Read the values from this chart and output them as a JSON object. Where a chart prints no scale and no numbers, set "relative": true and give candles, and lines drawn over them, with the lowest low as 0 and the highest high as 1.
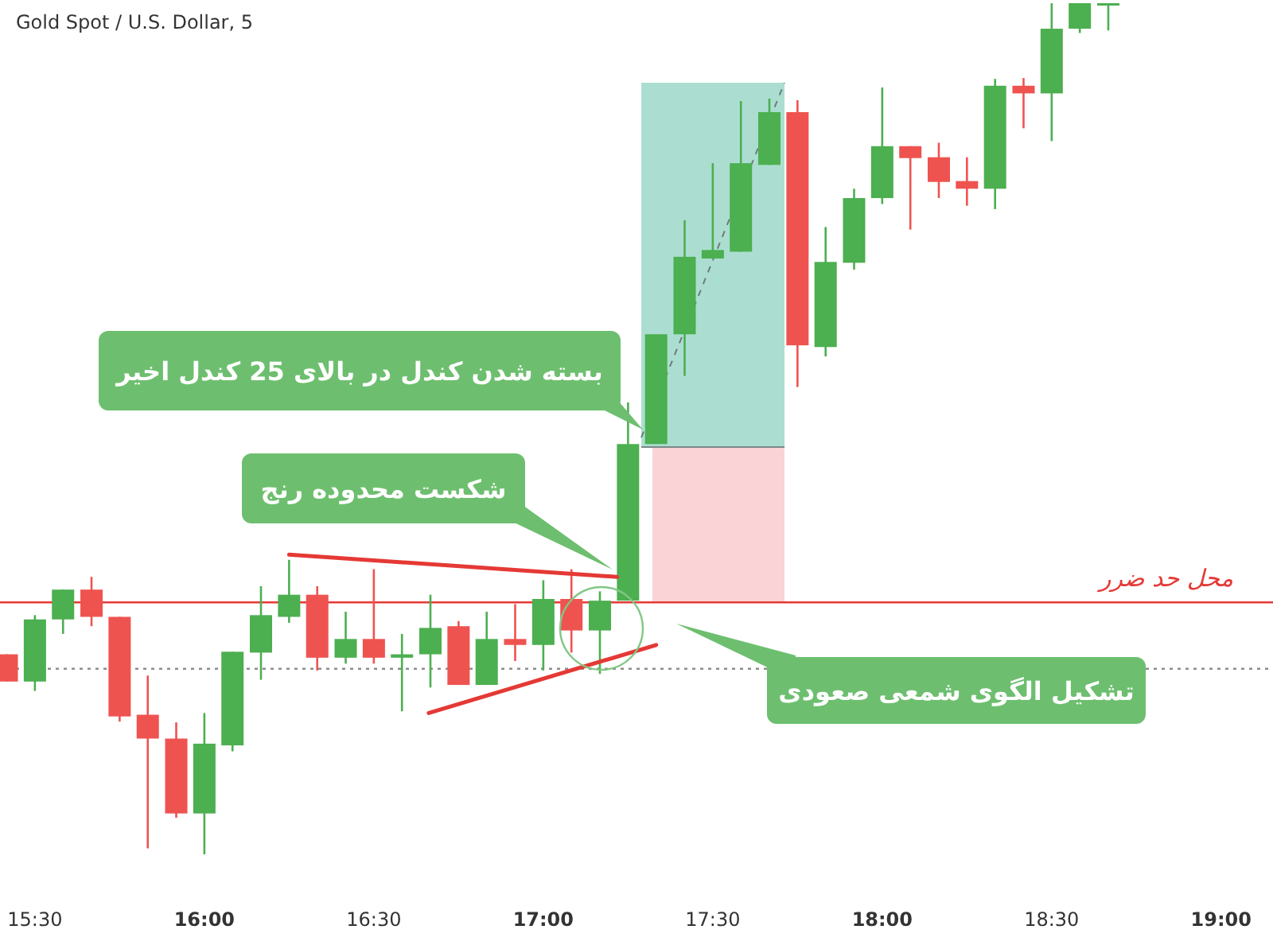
{
  "chart_data": {
    "type": "candlestick",
    "title": "Gold Spot / U.S. Dollar, 5",
    "relative": true,
    "x": [
      15.417,
      15.5,
      15.583,
      15.667,
      15.75,
      15.833,
      15.917,
      16,
      16.083,
      16.167,
      16.25,
      16.333,
      16.417,
      16.5,
      16.583,
      16.667,
      16.75,
      16.833,
      16.917,
      17,
      17.083,
      17.167,
      17.25,
      17.333,
      17.417,
      17.5,
      17.583,
      17.667,
      17.75,
      17.833,
      17.917,
      18,
      18.083,
      18.167,
      18.25,
      18.333,
      18.417,
      18.5,
      18.583,
      18.667
    ],
    "ohlc": [
      [
        0.235,
        0.235,
        0.203,
        0.203
      ],
      [
        0.203,
        0.281,
        0.192,
        0.276
      ],
      [
        0.276,
        0.311,
        0.259,
        0.311
      ],
      [
        0.311,
        0.326,
        0.268,
        0.279
      ],
      [
        0.279,
        0.279,
        0.156,
        0.162
      ],
      [
        0.164,
        0.21,
        0.007,
        0.136
      ],
      [
        0.136,
        0.155,
        0.043,
        0.048
      ],
      [
        0.048,
        0.166,
        0,
        0.13
      ],
      [
        0.128,
        0.238,
        0.121,
        0.238
      ],
      [
        0.237,
        0.315,
        0.205,
        0.281
      ],
      [
        0.279,
        0.346,
        0.272,
        0.305
      ],
      [
        0.305,
        0.315,
        0.216,
        0.231
      ],
      [
        0.231,
        0.285,
        0.224,
        0.253
      ],
      [
        0.253,
        0.335,
        0.224,
        0.231
      ],
      [
        0.231,
        0.259,
        0.168,
        0.235
      ],
      [
        0.235,
        0.305,
        0.196,
        0.266
      ],
      [
        0.268,
        0.274,
        0.199,
        0.199
      ],
      [
        0.199,
        0.285,
        0.199,
        0.253
      ],
      [
        0.253,
        0.294,
        0.227,
        0.246
      ],
      [
        0.246,
        0.322,
        0.216,
        0.3
      ],
      [
        0.3,
        0.335,
        0.237,
        0.263
      ],
      [
        0.263,
        0.309,
        0.212,
        0.298
      ],
      [
        0.298,
        0.531,
        0.298,
        0.482
      ],
      [
        0.482,
        0.611,
        0.482,
        0.611
      ],
      [
        0.611,
        0.745,
        0.562,
        0.702
      ],
      [
        0.7,
        0.812,
        0.7,
        0.71
      ],
      [
        0.708,
        0.885,
        0.708,
        0.812
      ],
      [
        0.81,
        0.888,
        0.81,
        0.872
      ],
      [
        0.872,
        0.886,
        0.549,
        0.598
      ],
      [
        0.596,
        0.737,
        0.585,
        0.696
      ],
      [
        0.695,
        0.782,
        0.687,
        0.771
      ],
      [
        0.771,
        0.901,
        0.764,
        0.832
      ],
      [
        0.832,
        0.832,
        0.734,
        0.818
      ],
      [
        0.819,
        0.836,
        0.771,
        0.79
      ],
      [
        0.791,
        0.819,
        0.762,
        0.782
      ],
      [
        0.782,
        0.911,
        0.758,
        0.903
      ],
      [
        0.903,
        0.912,
        0.853,
        0.894
      ],
      [
        0.894,
        1,
        0.838,
        0.97
      ],
      [
        0.97,
        1,
        0.965,
        1
      ],
      [
        1,
        1,
        0.968,
        1
      ]
    ],
    "colors": [
      "#ef5350",
      "#4caf50",
      "#4caf50",
      "#ef5350",
      "#ef5350",
      "#ef5350",
      "#ef5350",
      "#4caf50",
      "#4caf50",
      "#4caf50",
      "#4caf50",
      "#ef5350",
      "#4caf50",
      "#ef5350",
      "#4caf50",
      "#4caf50",
      "#ef5350",
      "#4caf50",
      "#ef5350",
      "#4caf50",
      "#ef5350",
      "#4caf50",
      "#4caf50",
      "#4caf50",
      "#4caf50",
      "#4caf50",
      "#4caf50",
      "#4caf50",
      "#ef5350",
      "#4caf50",
      "#4caf50",
      "#4caf50",
      "#ef5350",
      "#ef5350",
      "#ef5350",
      "#4caf50",
      "#ef5350",
      "#4caf50",
      "#4caf50",
      "#4caf50"
    ],
    "series": [
      {
        "type": "line",
        "color": "#e53935",
        "x": [
          16.25,
          17.218
        ],
        "values": [
          0.352,
          0.326
        ]
      },
      {
        "type": "line",
        "color": "#e53935",
        "x": [
          16.662,
          17.333
        ],
        "values": [
          0.166,
          0.246
        ]
      }
    ],
    "ref_lines": [
      {
        "axis": "y",
        "value": 0.296,
        "label": "محل حد ضرر",
        "color": "#e53935",
        "line_style": "solid"
      },
      {
        "axis": "y",
        "value": 0.218,
        "color": "#8d8d8d",
        "line_style": "dotted"
      }
    ],
    "xlim": [
      15.397,
      19.153
    ],
    "xticks": [
      {
        "value": 15.5,
        "label": "15:30"
      },
      {
        "value": 16,
        "label": "16:00"
      },
      {
        "value": 16.5,
        "label": "16:30"
      },
      {
        "value": 17,
        "label": "17:00"
      },
      {
        "value": 17.5,
        "label": "17:30"
      },
      {
        "value": 18,
        "label": "18:00"
      },
      {
        "value": 18.5,
        "label": "18:30"
      },
      {
        "value": 19,
        "label": "19:00"
      }
    ],
    "tick_labels": "x",
    "grid": false,
    "annotations": [
      "بسته شدن کندل در بالای 25 کندل اخیر",
      "شکست محدوده رنج",
      "تشکیل الگوی شمعی صعودی"
    ]
  }
}
